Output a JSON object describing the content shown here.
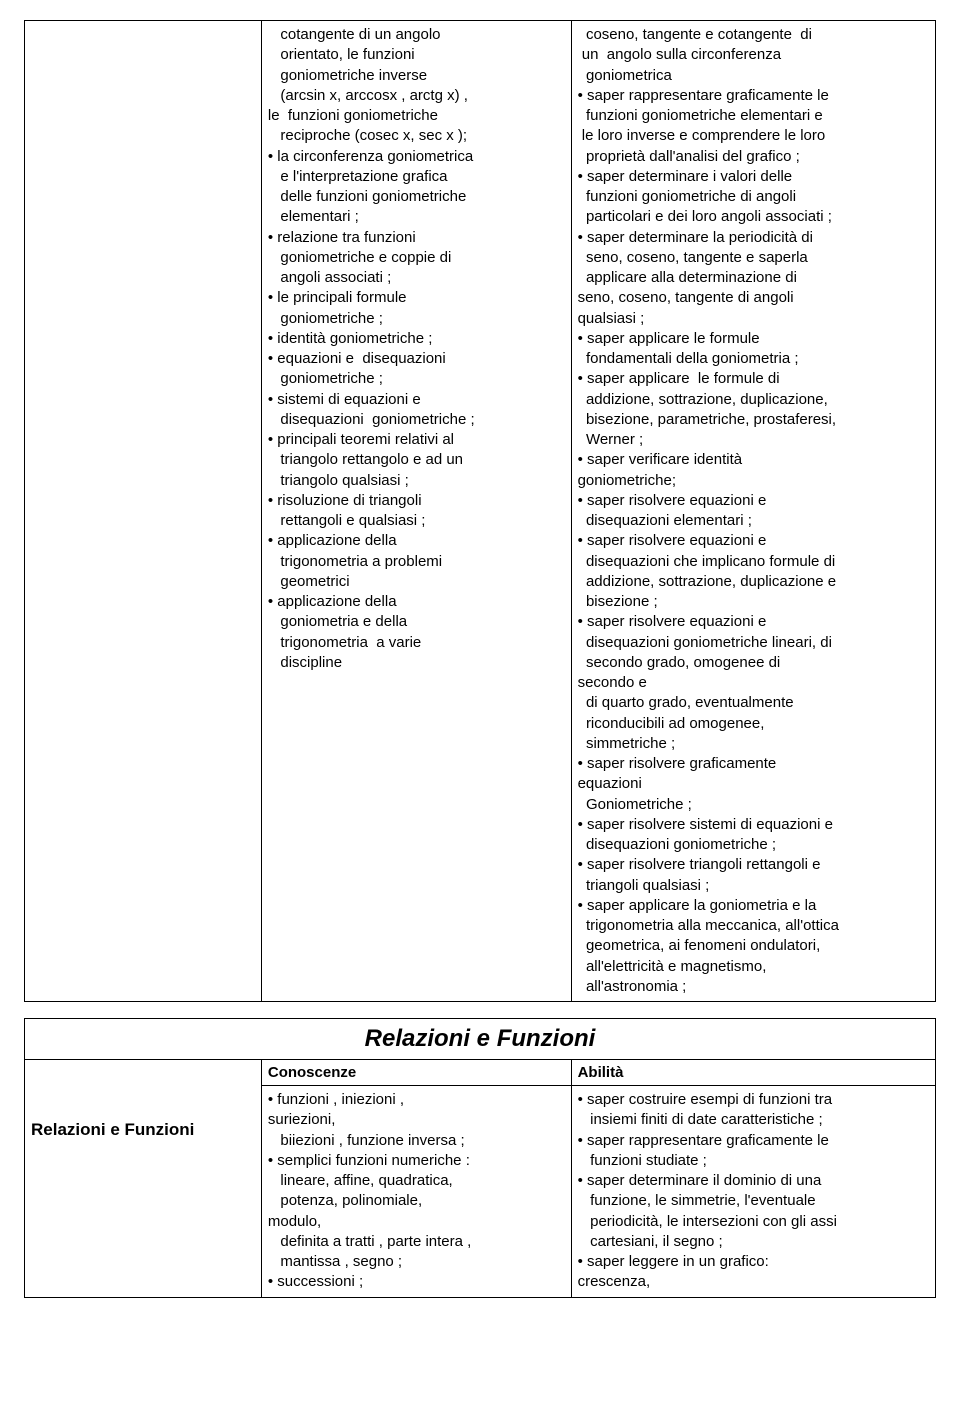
{
  "table1": {
    "col2": "   cotangente di un angolo\n   orientato, le funzioni\n   goniometriche inverse\n   (arcsin x, arccosx , arctg x) ,\nle  funzioni goniometriche\n   reciproche (cosec x, sec x );\n• la circonferenza goniometrica\n   e l'interpretazione grafica\n   delle funzioni goniometriche\n   elementari ;\n• relazione tra funzioni\n   goniometriche e coppie di\n   angoli associati ;\n• le principali formule\n   goniometriche ;\n• identità goniometriche ;\n• equazioni e  disequazioni\n   goniometriche ;\n• sistemi di equazioni e\n   disequazioni  goniometriche ;\n• principali teoremi relativi al\n   triangolo rettangolo e ad un\n   triangolo qualsiasi ;\n• risoluzione di triangoli\n   rettangoli e qualsiasi ;\n• applicazione della\n   trigonometria a problemi\n   geometrici\n• applicazione della\n   goniometria e della\n   trigonometria  a varie\n   discipline",
    "col3": "  coseno, tangente e cotangente  di\n un  angolo sulla circonferenza\n  goniometrica\n• saper rappresentare graficamente le\n  funzioni goniometriche elementari e\n le loro inverse e comprendere le loro\n  proprietà dall'analisi del grafico ;\n• saper determinare i valori delle\n  funzioni goniometriche di angoli\n  particolari e dei loro angoli associati ;\n• saper determinare la periodicità di\n  seno, coseno, tangente e saperla\n  applicare alla determinazione di\nseno, coseno, tangente di angoli\nqualsiasi ;\n• saper applicare le formule\n  fondamentali della goniometria ;\n• saper applicare  le formule di\n  addizione, sottrazione, duplicazione,\n  bisezione, parametriche, prostaferesi,\n  Werner ;\n• saper verificare identità\ngoniometriche;\n• saper risolvere equazioni e\n  disequazioni elementari ;\n• saper risolvere equazioni e\n  disequazioni che implicano formule di\n  addizione, sottrazione, duplicazione e\n  bisezione ;\n• saper risolvere equazioni e\n  disequazioni goniometriche lineari, di\n  secondo grado, omogenee di\nsecondo e\n  di quarto grado, eventualmente\n  riconducibili ad omogenee,\n  simmetriche ;\n• saper risolvere graficamente\nequazioni\n  Goniometriche ;\n• saper risolvere sistemi di equazioni e\n  disequazioni goniometriche ;\n• saper risolvere triangoli rettangoli e\n  triangoli qualsiasi ;\n• saper applicare la goniometria e la\n  trigonometria alla meccanica, all'ottica\n  geometrica, ai fenomeni ondulatori,\n  all'elettricità e magnetismo,\n  all'astronomia ;"
  },
  "table2": {
    "title": "Relazioni e Funzioni",
    "header_col2": "Conoscenze",
    "header_col3": "Abilità",
    "row_label": "Relazioni e Funzioni",
    "col2": "• funzioni , iniezioni ,\nsuriezioni,\n   biiezioni , funzione inversa ;\n• semplici funzioni numeriche :\n   lineare, affine, quadratica,\n   potenza, polinomiale,\nmodulo,\n   definita a tratti , parte intera ,\n   mantissa , segno ;\n• successioni ;",
    "col3": "• saper costruire esempi di funzioni tra\n   insiemi finiti di date caratteristiche ;\n• saper rappresentare graficamente le\n   funzioni studiate ;\n• saper determinare il dominio di una\n   funzione, le simmetrie, l'eventuale\n   periodicità, le intersezioni con gli assi\n   cartesiani, il segno ;\n• saper leggere in un grafico:\ncrescenza,"
  }
}
